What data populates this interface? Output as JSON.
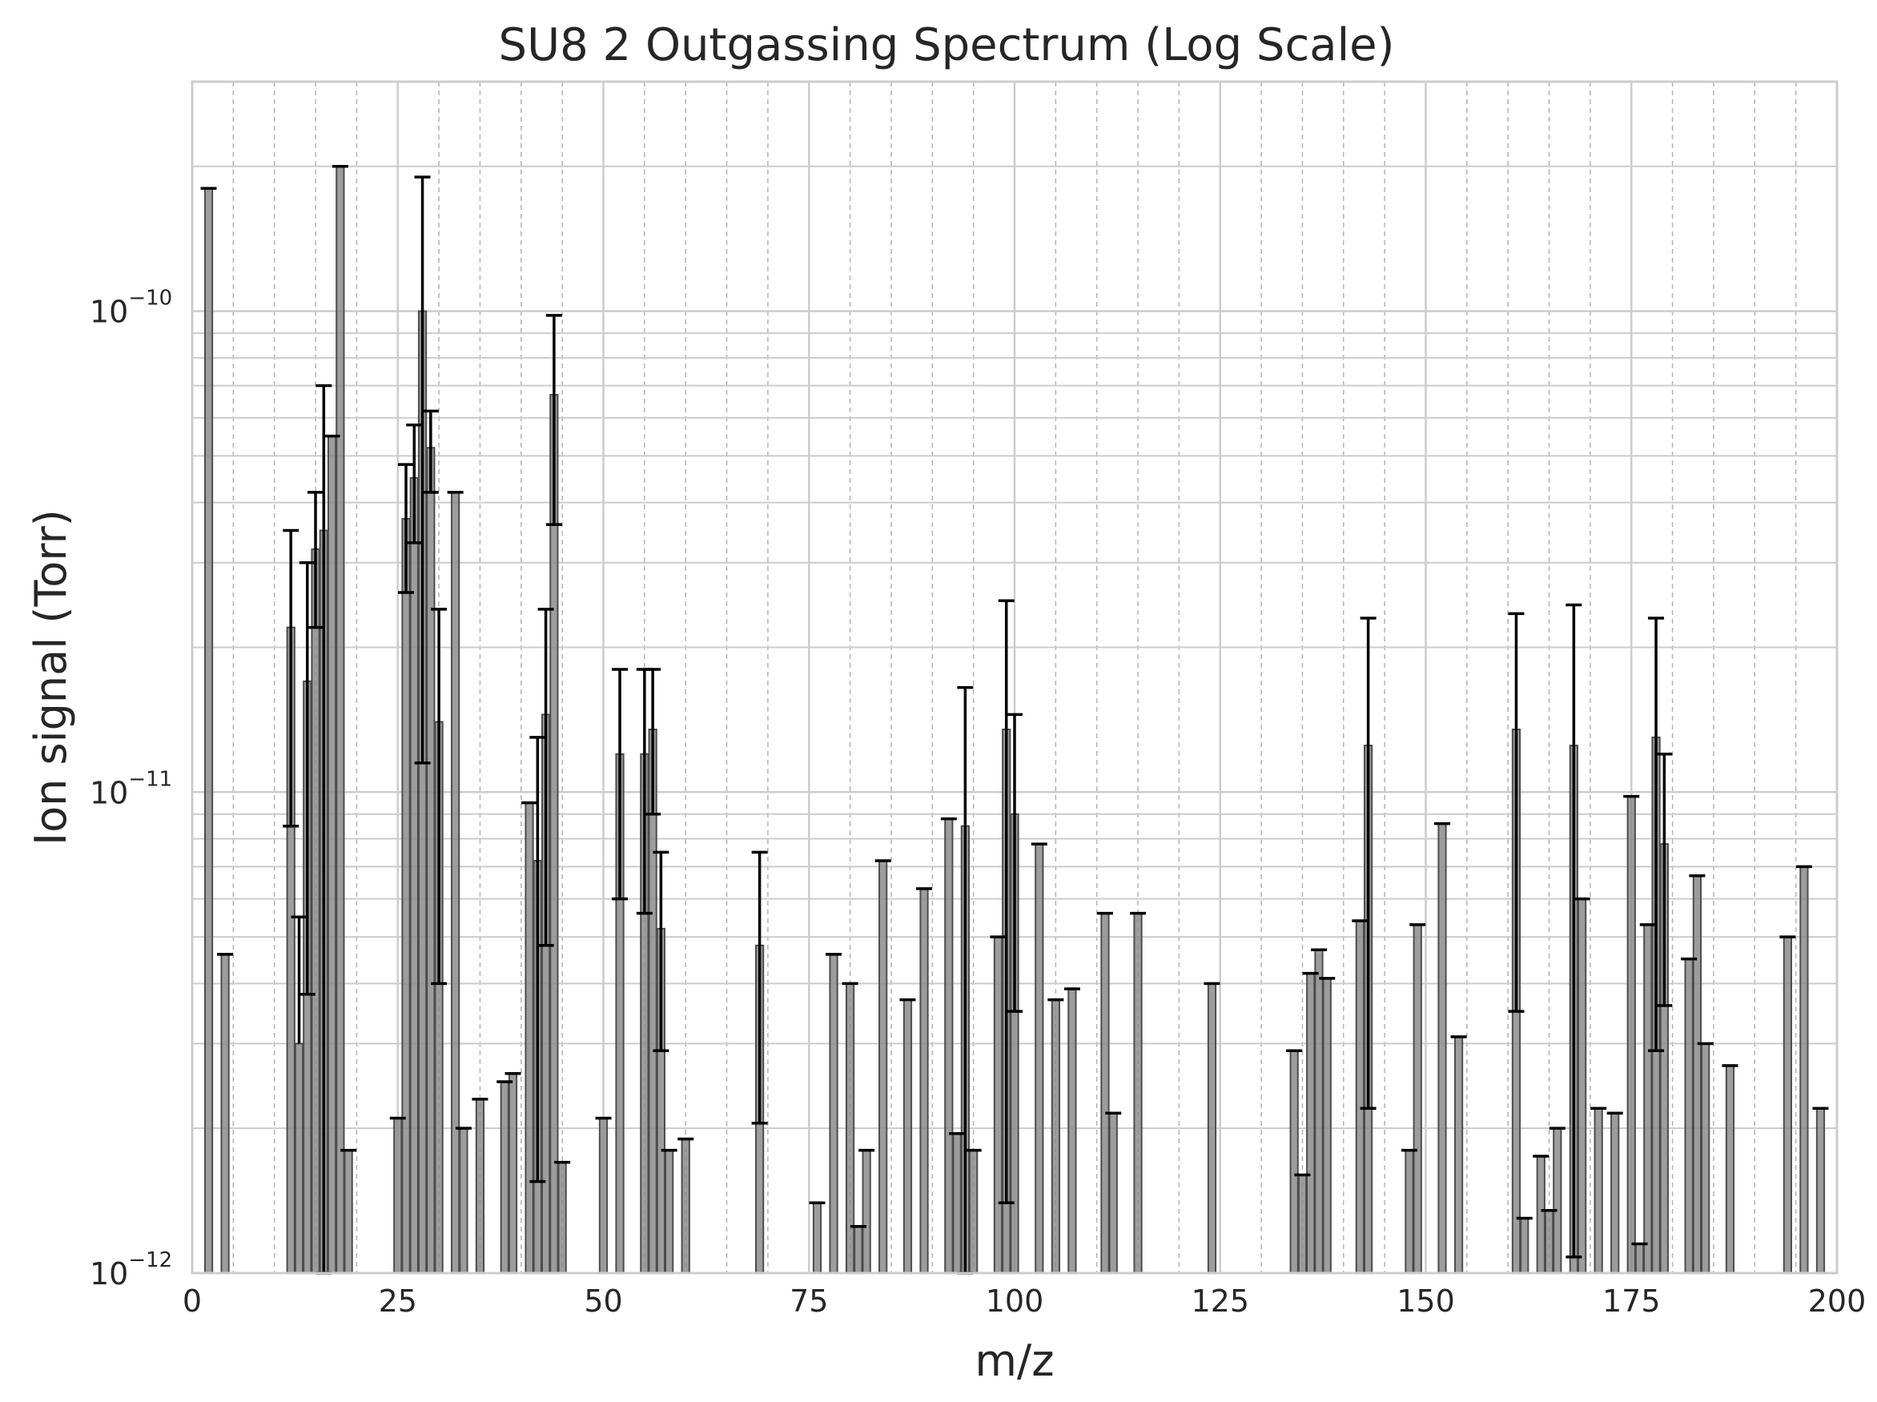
{
  "chart_data": {
    "type": "bar",
    "title": "SU8 2 Outgassing Spectrum (Log Scale)",
    "xlabel": "m/z",
    "ylabel": "Ion signal (Torr)",
    "xlim": [
      0,
      200
    ],
    "ylim": [
      1e-12,
      3e-10
    ],
    "yscale": "log",
    "grid": true,
    "x_ticks": [
      0,
      25,
      50,
      75,
      100,
      125,
      150,
      175,
      200
    ],
    "y_ticks": [
      {
        "value": 1e-12,
        "base": "10",
        "exp": "−12"
      },
      {
        "value": 1e-11,
        "base": "10",
        "exp": "−11"
      },
      {
        "value": 1e-10,
        "base": "10",
        "exp": "−10"
      }
    ],
    "colors": {
      "bar_fill": "#8c8c8c",
      "bar_edge": "#4d4d4d",
      "error": "#000000",
      "grid_major": "#cccccc",
      "grid_minor": "#b3b3b3"
    },
    "bars": [
      {
        "x": 2,
        "y": 1.8e-10,
        "err_hi": 1.8e-10
      },
      {
        "x": 4,
        "y": 4.6e-12,
        "err_hi": 4.6e-12
      },
      {
        "x": 12,
        "y": 2.2e-11,
        "err_lo": 8.5e-12,
        "err_hi": 3.5e-11
      },
      {
        "x": 13,
        "y": 3e-12,
        "err_hi": 5.5e-12
      },
      {
        "x": 14,
        "y": 1.7e-11,
        "err_lo": 3.8e-12,
        "err_hi": 3e-11
      },
      {
        "x": 15,
        "y": 3.2e-11,
        "err_lo": 2.2e-11,
        "err_hi": 4.2e-11
      },
      {
        "x": 16,
        "y": 3.5e-11,
        "err_lo": 1e-12,
        "err_hi": 7e-11
      },
      {
        "x": 17,
        "y": 5.5e-11,
        "err_hi": 5.5e-11
      },
      {
        "x": 18,
        "y": 2e-10,
        "err_hi": 2e-10
      },
      {
        "x": 19,
        "y": 1.8e-12,
        "err_hi": 1.8e-12
      },
      {
        "x": 25,
        "y": 2.1e-12,
        "err_hi": 2.1e-12
      },
      {
        "x": 26,
        "y": 3.7e-11,
        "err_lo": 2.6e-11,
        "err_hi": 4.8e-11
      },
      {
        "x": 27,
        "y": 4.5e-11,
        "err_lo": 3.3e-11,
        "err_hi": 5.8e-11
      },
      {
        "x": 28,
        "y": 1e-10,
        "err_lo": 1.15e-11,
        "err_hi": 1.9e-10
      },
      {
        "x": 29,
        "y": 5.2e-11,
        "err_lo": 4.2e-11,
        "err_hi": 6.2e-11
      },
      {
        "x": 30,
        "y": 1.4e-11,
        "err_lo": 4e-12,
        "err_hi": 2.4e-11
      },
      {
        "x": 32,
        "y": 4.2e-11,
        "err_hi": 4.2e-11
      },
      {
        "x": 33,
        "y": 2e-12,
        "err_hi": 2e-12
      },
      {
        "x": 35,
        "y": 2.3e-12,
        "err_hi": 2.3e-12
      },
      {
        "x": 38,
        "y": 2.5e-12,
        "err_hi": 2.5e-12
      },
      {
        "x": 39,
        "y": 2.6e-12,
        "err_hi": 2.6e-12
      },
      {
        "x": 41,
        "y": 9.5e-12,
        "err_hi": 9.5e-12
      },
      {
        "x": 42,
        "y": 7.2e-12,
        "err_lo": 1.55e-12,
        "err_hi": 1.3e-11
      },
      {
        "x": 43,
        "y": 1.45e-11,
        "err_lo": 4.8e-12,
        "err_hi": 2.4e-11
      },
      {
        "x": 44,
        "y": 6.7e-11,
        "err_lo": 3.6e-11,
        "err_hi": 9.8e-11
      },
      {
        "x": 45,
        "y": 1.7e-12,
        "err_hi": 1.7e-12
      },
      {
        "x": 50,
        "y": 2.1e-12,
        "err_hi": 2.1e-12
      },
      {
        "x": 52,
        "y": 1.2e-11,
        "err_lo": 6e-12,
        "err_hi": 1.8e-11
      },
      {
        "x": 55,
        "y": 1.2e-11,
        "err_lo": 5.6e-12,
        "err_hi": 1.8e-11
      },
      {
        "x": 56,
        "y": 1.35e-11,
        "err_lo": 9e-12,
        "err_hi": 1.8e-11
      },
      {
        "x": 57,
        "y": 5.2e-12,
        "err_lo": 2.9e-12,
        "err_hi": 7.5e-12
      },
      {
        "x": 58,
        "y": 1.8e-12,
        "err_hi": 1.8e-12
      },
      {
        "x": 60,
        "y": 1.9e-12,
        "err_hi": 1.9e-12
      },
      {
        "x": 69,
        "y": 4.8e-12,
        "err_lo": 2.05e-12,
        "err_hi": 7.5e-12
      },
      {
        "x": 76,
        "y": 1.4e-12,
        "err_hi": 1.4e-12
      },
      {
        "x": 78,
        "y": 4.6e-12,
        "err_hi": 4.6e-12
      },
      {
        "x": 80,
        "y": 4e-12,
        "err_hi": 4e-12
      },
      {
        "x": 81,
        "y": 1.25e-12,
        "err_hi": 1.25e-12
      },
      {
        "x": 82,
        "y": 1.8e-12,
        "err_hi": 1.8e-12
      },
      {
        "x": 84,
        "y": 7.2e-12,
        "err_hi": 7.2e-12
      },
      {
        "x": 87,
        "y": 3.7e-12,
        "err_hi": 3.7e-12
      },
      {
        "x": 89,
        "y": 6.3e-12,
        "err_hi": 6.3e-12
      },
      {
        "x": 92,
        "y": 8.8e-12,
        "err_hi": 8.8e-12
      },
      {
        "x": 93,
        "y": 1.95e-12,
        "err_hi": 1.95e-12
      },
      {
        "x": 94,
        "y": 8.5e-12,
        "err_lo": 1e-12,
        "err_hi": 1.65e-11
      },
      {
        "x": 95,
        "y": 1.8e-12,
        "err_hi": 1.8e-12
      },
      {
        "x": 98,
        "y": 5e-12,
        "err_hi": 5e-12
      },
      {
        "x": 99,
        "y": 1.35e-11,
        "err_lo": 1.4e-12,
        "err_hi": 2.5e-11
      },
      {
        "x": 100,
        "y": 9e-12,
        "err_lo": 3.5e-12,
        "err_hi": 1.45e-11
      },
      {
        "x": 103,
        "y": 7.8e-12,
        "err_hi": 7.8e-12
      },
      {
        "x": 105,
        "y": 3.7e-12,
        "err_hi": 3.7e-12
      },
      {
        "x": 107,
        "y": 3.9e-12,
        "err_hi": 3.9e-12
      },
      {
        "x": 111,
        "y": 5.6e-12,
        "err_hi": 5.6e-12
      },
      {
        "x": 112,
        "y": 2.15e-12,
        "err_hi": 2.15e-12
      },
      {
        "x": 115,
        "y": 5.6e-12,
        "err_hi": 5.6e-12
      },
      {
        "x": 124,
        "y": 4e-12,
        "err_hi": 4e-12
      },
      {
        "x": 134,
        "y": 2.9e-12,
        "err_hi": 2.9e-12
      },
      {
        "x": 135,
        "y": 1.6e-12,
        "err_hi": 1.6e-12
      },
      {
        "x": 136,
        "y": 4.2e-12,
        "err_hi": 4.2e-12
      },
      {
        "x": 137,
        "y": 4.7e-12,
        "err_hi": 4.7e-12
      },
      {
        "x": 138,
        "y": 4.1e-12,
        "err_hi": 4.1e-12
      },
      {
        "x": 142,
        "y": 5.4e-12,
        "err_hi": 5.4e-12
      },
      {
        "x": 143,
        "y": 1.25e-11,
        "err_lo": 2.2e-12,
        "err_hi": 2.3e-11
      },
      {
        "x": 148,
        "y": 1.8e-12,
        "err_hi": 1.8e-12
      },
      {
        "x": 149,
        "y": 5.3e-12,
        "err_hi": 5.3e-12
      },
      {
        "x": 152,
        "y": 8.6e-12,
        "err_hi": 8.6e-12
      },
      {
        "x": 154,
        "y": 3.1e-12,
        "err_hi": 3.1e-12
      },
      {
        "x": 161,
        "y": 1.35e-11,
        "err_lo": 3.5e-12,
        "err_hi": 2.35e-11
      },
      {
        "x": 162,
        "y": 1.3e-12,
        "err_hi": 1.3e-12
      },
      {
        "x": 164,
        "y": 1.75e-12,
        "err_hi": 1.75e-12
      },
      {
        "x": 165,
        "y": 1.35e-12,
        "err_hi": 1.35e-12
      },
      {
        "x": 166,
        "y": 2e-12,
        "err_hi": 2e-12
      },
      {
        "x": 168,
        "y": 1.25e-11,
        "err_lo": 1.08e-12,
        "err_hi": 2.45e-11
      },
      {
        "x": 169,
        "y": 6e-12,
        "err_hi": 6e-12
      },
      {
        "x": 171,
        "y": 2.2e-12,
        "err_hi": 2.2e-12
      },
      {
        "x": 173,
        "y": 2.15e-12,
        "err_hi": 2.15e-12
      },
      {
        "x": 175,
        "y": 9.8e-12,
        "err_hi": 9.8e-12
      },
      {
        "x": 176,
        "y": 1.15e-12,
        "err_hi": 1.15e-12
      },
      {
        "x": 177,
        "y": 5.3e-12,
        "err_hi": 5.3e-12
      },
      {
        "x": 178,
        "y": 1.3e-11,
        "err_lo": 2.9e-12,
        "err_hi": 2.3e-11
      },
      {
        "x": 179,
        "y": 7.8e-12,
        "err_lo": 3.6e-12,
        "err_hi": 1.2e-11
      },
      {
        "x": 182,
        "y": 4.5e-12,
        "err_hi": 4.5e-12
      },
      {
        "x": 183,
        "y": 6.7e-12,
        "err_hi": 6.7e-12
      },
      {
        "x": 184,
        "y": 3e-12,
        "err_hi": 3e-12
      },
      {
        "x": 187,
        "y": 2.7e-12,
        "err_hi": 2.7e-12
      },
      {
        "x": 194,
        "y": 5e-12,
        "err_hi": 5e-12
      },
      {
        "x": 196,
        "y": 7e-12,
        "err_hi": 7e-12
      },
      {
        "x": 198,
        "y": 2.2e-12,
        "err_hi": 2.2e-12
      }
    ]
  }
}
